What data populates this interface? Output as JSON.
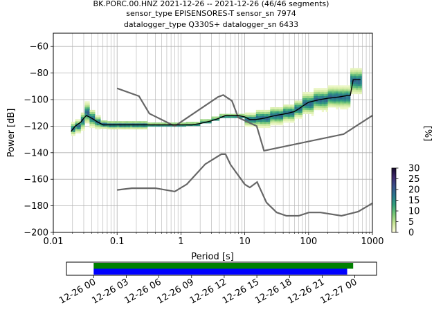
{
  "chart_data": [
    {
      "type": "heatmap",
      "title_lines": [
        "BK.PORC.00.HNZ   2021-12-26 -- 2021-12-26  (46/46 segments)",
        "sensor_type EPISENSORES-T sensor_sn 7974",
        "datalogger_type Q330S+ datalogger_sn 6433"
      ],
      "xlabel": "Period [s]",
      "ylabel": "Power [dB]",
      "x_scale": "log",
      "xlim": [
        0.01,
        1000
      ],
      "ylim": [
        -200,
        -50
      ],
      "x_ticks": [
        {
          "value": 0.01,
          "label": "0.01"
        },
        {
          "value": 0.1,
          "label": "0.1"
        },
        {
          "value": 1,
          "label": "1"
        },
        {
          "value": 10,
          "label": "10"
        },
        {
          "value": 100,
          "label": "100"
        },
        {
          "value": 1000,
          "label": "1000"
        }
      ],
      "y_ticks": [
        {
          "value": -60,
          "label": "−60"
        },
        {
          "value": -80,
          "label": "−80"
        },
        {
          "value": -100,
          "label": "−100"
        },
        {
          "value": -120,
          "label": "−120"
        },
        {
          "value": -140,
          "label": "−140"
        },
        {
          "value": -160,
          "label": "−160"
        },
        {
          "value": -180,
          "label": "−180"
        },
        {
          "value": -200,
          "label": "−200"
        }
      ],
      "grid": true,
      "colorbar": {
        "label": "[%]",
        "range": [
          0,
          30
        ],
        "ticks": [
          {
            "value": 0,
            "label": "0"
          },
          {
            "value": 5,
            "label": "5"
          },
          {
            "value": 10,
            "label": "10"
          },
          {
            "value": 15,
            "label": "15"
          },
          {
            "value": 20,
            "label": "20"
          },
          {
            "value": 25,
            "label": "25"
          },
          {
            "value": 30,
            "label": "30"
          }
        ],
        "colormap_stops": [
          "#ffffe0",
          "#c8e696",
          "#78c878",
          "#32a07d",
          "#2a788e",
          "#3b528b",
          "#3e2a6e",
          "#1a0b2e"
        ]
      },
      "series": [
        {
          "style": "mode",
          "color": "#000000",
          "x": [
            0.019,
            0.022,
            0.027,
            0.03,
            0.033,
            0.04,
            0.05,
            0.06,
            0.08,
            0.1,
            0.2,
            0.5,
            1,
            1.5,
            2,
            3,
            4,
            5,
            6,
            8,
            10,
            12,
            15,
            20,
            30,
            40,
            50,
            60,
            70,
            80,
            100,
            150,
            200,
            300,
            400,
            450,
            500,
            600,
            650
          ],
          "y": [
            -124,
            -120,
            -117,
            -114,
            -112,
            -114,
            -117,
            -119,
            -119,
            -119,
            -119,
            -119,
            -119,
            -119,
            -118,
            -116,
            -114,
            -112,
            -112,
            -112,
            -113,
            -115,
            -115,
            -114,
            -112,
            -111,
            -110,
            -109,
            -107,
            -105,
            -102,
            -100,
            -99,
            -98,
            -97,
            -97,
            -85,
            -85,
            -85
          ]
        },
        {
          "style": "model",
          "name": "NHNM",
          "color": "#666666",
          "x": [
            0.1,
            0.22,
            0.32,
            0.8,
            3.8,
            4.6,
            6.3,
            7.9,
            15.4,
            20,
            354.8,
            1000
          ],
          "y": [
            -91.5,
            -97.4,
            -110.5,
            -120,
            -98,
            -96.5,
            -101,
            -113.5,
            -120,
            -138.5,
            -126,
            -112
          ]
        },
        {
          "style": "model",
          "name": "NLNM",
          "color": "#666666",
          "x": [
            0.1,
            0.17,
            0.4,
            0.8,
            1.24,
            2.4,
            4.3,
            5,
            6,
            10,
            12,
            15.6,
            21.9,
            31.6,
            45,
            70,
            101,
            154,
            328,
            600,
            1000
          ],
          "y": [
            -168,
            -166.7,
            -166.7,
            -169.2,
            -163.7,
            -148.6,
            -141.1,
            -141.1,
            -149,
            -163.8,
            -166.2,
            -162.1,
            -177.5,
            -185,
            -187.5,
            -187.5,
            -185,
            -185,
            -187.5,
            -184.4,
            -178
          ]
        }
      ],
      "heatmap_bands": [
        {
          "x0": 0.019,
          "x1": 0.022,
          "center": -122,
          "spread": 3
        },
        {
          "x0": 0.022,
          "x1": 0.027,
          "center": -120,
          "spread": 3
        },
        {
          "x0": 0.027,
          "x1": 0.031,
          "center": -116,
          "spread": 4
        },
        {
          "x0": 0.031,
          "x1": 0.037,
          "center": -110,
          "spread": 5
        },
        {
          "x0": 0.037,
          "x1": 0.045,
          "center": -114,
          "spread": 4
        },
        {
          "x0": 0.045,
          "x1": 0.055,
          "center": -117,
          "spread": 3
        },
        {
          "x0": 0.055,
          "x1": 0.07,
          "center": -118.5,
          "spread": 2
        },
        {
          "x0": 0.07,
          "x1": 0.1,
          "center": -119,
          "spread": 2
        },
        {
          "x0": 0.1,
          "x1": 0.16,
          "center": -119,
          "spread": 2
        },
        {
          "x0": 0.16,
          "x1": 0.3,
          "center": -119,
          "spread": 2
        },
        {
          "x0": 0.3,
          "x1": 1.2,
          "center": -119,
          "spread": 1
        },
        {
          "x0": 1.2,
          "x1": 2,
          "center": -118.5,
          "spread": 1
        },
        {
          "x0": 2,
          "x1": 3,
          "center": -116.5,
          "spread": 1
        },
        {
          "x0": 3,
          "x1": 4,
          "center": -114.5,
          "spread": 1
        },
        {
          "x0": 4,
          "x1": 6,
          "center": -112.5,
          "spread": 1
        },
        {
          "x0": 6,
          "x1": 10,
          "center": -112.5,
          "spread": 1
        },
        {
          "x0": 10,
          "x1": 15,
          "center": -115,
          "spread": 3
        },
        {
          "x0": 15,
          "x1": 25,
          "center": -114,
          "spread": 4
        },
        {
          "x0": 25,
          "x1": 40,
          "center": -112,
          "spread": 4
        },
        {
          "x0": 40,
          "x1": 60,
          "center": -110,
          "spread": 4
        },
        {
          "x0": 60,
          "x1": 80,
          "center": -107,
          "spread": 4
        },
        {
          "x0": 80,
          "x1": 120,
          "center": -103,
          "spread": 5
        },
        {
          "x0": 120,
          "x1": 200,
          "center": -100,
          "spread": 5
        },
        {
          "x0": 200,
          "x1": 450,
          "center": -98,
          "spread": 5
        },
        {
          "x0": 450,
          "x1": 680,
          "center": -86,
          "spread": 6
        }
      ]
    },
    {
      "type": "bar",
      "x_tick_labels": [
        "12-26 00",
        "12-26 03",
        "12-26 06",
        "12-26 09",
        "12-26 12",
        "12-26 15",
        "12-26 18",
        "12-26 21",
        "12-27 00"
      ],
      "xlim_hours": [
        -2.5,
        26
      ],
      "series": [
        {
          "color": "#008000",
          "start_hour": 0,
          "end_hour": 23.85
        },
        {
          "color": "#0000ff",
          "start_hour": 0,
          "end_hour": 23.3
        }
      ]
    }
  ]
}
